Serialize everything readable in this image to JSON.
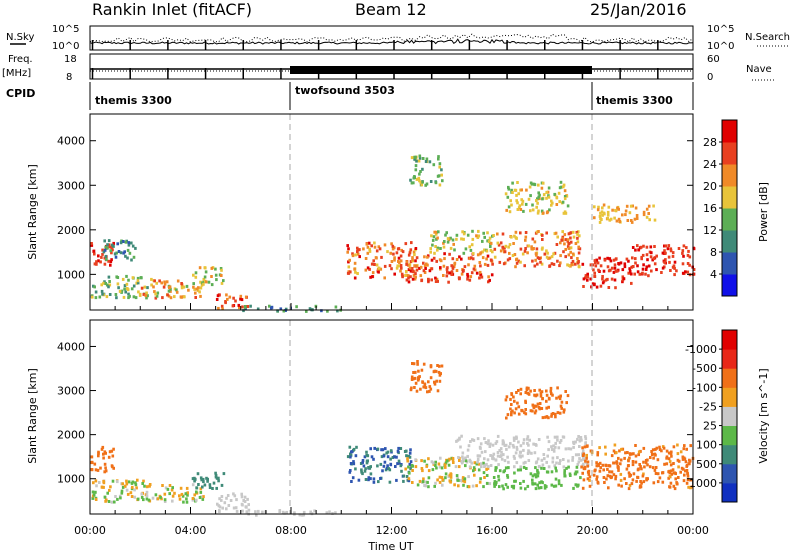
{
  "header": {
    "station": "Rankin Inlet (fitACF)",
    "beam": "Beam 12",
    "date": "25/Jan/2016"
  },
  "top_panels": {
    "nsky_label": "N.Sky",
    "nsky_ticks": [
      "10^5",
      "10^0"
    ],
    "nsearch_label": "N.Search",
    "nsearch_ticks": [
      "10^5",
      "10^0"
    ],
    "freq_label": "Freq.",
    "freq_unit": "[MHz]",
    "freq_ticks": [
      "18",
      "8"
    ],
    "nave_label": "Nave",
    "nave_ticks": [
      "60",
      "0"
    ],
    "cpid_label": "CPID",
    "cpid_segments": [
      {
        "name": "themis 3300",
        "start_h": 0,
        "end_h": 8
      },
      {
        "name": "twofsound 3503",
        "start_h": 8,
        "end_h": 20
      },
      {
        "name": "themis 3300",
        "start_h": 20,
        "end_h": 24
      }
    ]
  },
  "chart_data": [
    {
      "type": "heatmap",
      "name": "power",
      "ylabel": "Slant Range [km]",
      "yticks": [
        1000,
        2000,
        3000,
        4000
      ],
      "ylim": [
        200,
        4600
      ],
      "xlim": [
        0,
        24
      ],
      "colorbar": {
        "label": "Power [dB]",
        "ticks": [
          "4",
          "8",
          "12",
          "16",
          "20",
          "24",
          "28"
        ],
        "colors": [
          "#1010e8",
          "#2e55b0",
          "#3f8a78",
          "#5cae55",
          "#e8c43a",
          "#f08a28",
          "#e84020",
          "#e00000"
        ]
      },
      "regions": [
        {
          "x0": 0.0,
          "x1": 0.9,
          "y0": 1150,
          "y1": 1750,
          "vmin": 24,
          "vmax": 30
        },
        {
          "x0": 0.5,
          "x1": 1.8,
          "y0": 1300,
          "y1": 1800,
          "vmin": 6,
          "vmax": 14
        },
        {
          "x0": 0.0,
          "x1": 2.5,
          "y0": 500,
          "y1": 1000,
          "vmin": 10,
          "vmax": 20
        },
        {
          "x0": 2.0,
          "x1": 4.5,
          "y0": 500,
          "y1": 900,
          "vmin": 14,
          "vmax": 26
        },
        {
          "x0": 4.0,
          "x1": 5.3,
          "y0": 800,
          "y1": 1200,
          "vmin": 12,
          "vmax": 22
        },
        {
          "x0": 5.0,
          "x1": 6.3,
          "y0": 250,
          "y1": 600,
          "vmin": 22,
          "vmax": 30
        },
        {
          "x0": 6.0,
          "x1": 10.0,
          "y0": 200,
          "y1": 320,
          "vmin": 6,
          "vmax": 16
        },
        {
          "x0": 10.2,
          "x1": 13.0,
          "y0": 950,
          "y1": 1750,
          "vmin": 18,
          "vmax": 30
        },
        {
          "x0": 12.5,
          "x1": 16.0,
          "y0": 850,
          "y1": 1500,
          "vmin": 20,
          "vmax": 30
        },
        {
          "x0": 13.5,
          "x1": 16.0,
          "y0": 1500,
          "y1": 2000,
          "vmin": 12,
          "vmax": 22
        },
        {
          "x0": 16.0,
          "x1": 19.5,
          "y0": 1200,
          "y1": 2000,
          "vmin": 16,
          "vmax": 28
        },
        {
          "x0": 16.5,
          "x1": 19.0,
          "y0": 2400,
          "y1": 3100,
          "vmin": 12,
          "vmax": 22
        },
        {
          "x0": 12.7,
          "x1": 14.0,
          "y0": 3000,
          "y1": 3700,
          "vmin": 10,
          "vmax": 20
        },
        {
          "x0": 19.5,
          "x1": 21.5,
          "y0": 700,
          "y1": 1400,
          "vmin": 26,
          "vmax": 30
        },
        {
          "x0": 21.5,
          "x1": 24.0,
          "y0": 1000,
          "y1": 1700,
          "vmin": 24,
          "vmax": 30
        },
        {
          "x0": 20.0,
          "x1": 22.5,
          "y0": 2200,
          "y1": 2600,
          "vmin": 16,
          "vmax": 24
        }
      ]
    },
    {
      "type": "heatmap",
      "name": "velocity",
      "ylabel": "Slant Range [km]",
      "yticks": [
        1000,
        2000,
        3000,
        4000
      ],
      "ylim": [
        200,
        4600
      ],
      "xlim": [
        0,
        24
      ],
      "xlabel": "Time UT",
      "xticks": [
        "00:00",
        "04:00",
        "08:00",
        "12:00",
        "16:00",
        "20:00",
        "00:00"
      ],
      "colorbar": {
        "label": "Velocity [m s^-1]",
        "ticks": [
          "1000",
          "500",
          "100",
          "25",
          "-25",
          "-100",
          "-500",
          "-1000"
        ],
        "colors": [
          "#1030c0",
          "#2e55b0",
          "#3f8a78",
          "#5cb848",
          "#c8c8c8",
          "#f0a020",
          "#f07018",
          "#e82818",
          "#e00000"
        ]
      },
      "regions": [
        {
          "x0": 0.0,
          "x1": 0.9,
          "y0": 1150,
          "y1": 1750,
          "vmin": -500,
          "vmax": -100
        },
        {
          "x0": 0.0,
          "x1": 2.5,
          "y0": 500,
          "y1": 1000,
          "vmin": -100,
          "vmax": 100
        },
        {
          "x0": 2.0,
          "x1": 4.5,
          "y0": 500,
          "y1": 900,
          "vmin": -100,
          "vmax": 100
        },
        {
          "x0": 4.0,
          "x1": 5.3,
          "y0": 800,
          "y1": 1200,
          "vmin": 100,
          "vmax": 500
        },
        {
          "x0": 5.0,
          "x1": 6.3,
          "y0": 250,
          "y1": 700,
          "vmin": -25,
          "vmax": 25
        },
        {
          "x0": 6.0,
          "x1": 10.0,
          "y0": 200,
          "y1": 320,
          "vmin": -25,
          "vmax": 25
        },
        {
          "x0": 10.2,
          "x1": 12.8,
          "y0": 950,
          "y1": 1750,
          "vmin": 100,
          "vmax": 1000
        },
        {
          "x0": 12.5,
          "x1": 16.0,
          "y0": 850,
          "y1": 1500,
          "vmin": -100,
          "vmax": 100
        },
        {
          "x0": 14.5,
          "x1": 19.8,
          "y0": 1300,
          "y1": 2000,
          "vmin": -25,
          "vmax": 25
        },
        {
          "x0": 16.0,
          "x1": 19.5,
          "y0": 800,
          "y1": 1300,
          "vmin": 25,
          "vmax": 100
        },
        {
          "x0": 16.5,
          "x1": 19.0,
          "y0": 2400,
          "y1": 3100,
          "vmin": -500,
          "vmax": -100
        },
        {
          "x0": 12.7,
          "x1": 14.0,
          "y0": 3000,
          "y1": 3700,
          "vmin": -500,
          "vmax": -100
        },
        {
          "x0": 19.5,
          "x1": 24.0,
          "y0": 800,
          "y1": 1800,
          "vmin": -500,
          "vmax": -25
        }
      ]
    }
  ]
}
